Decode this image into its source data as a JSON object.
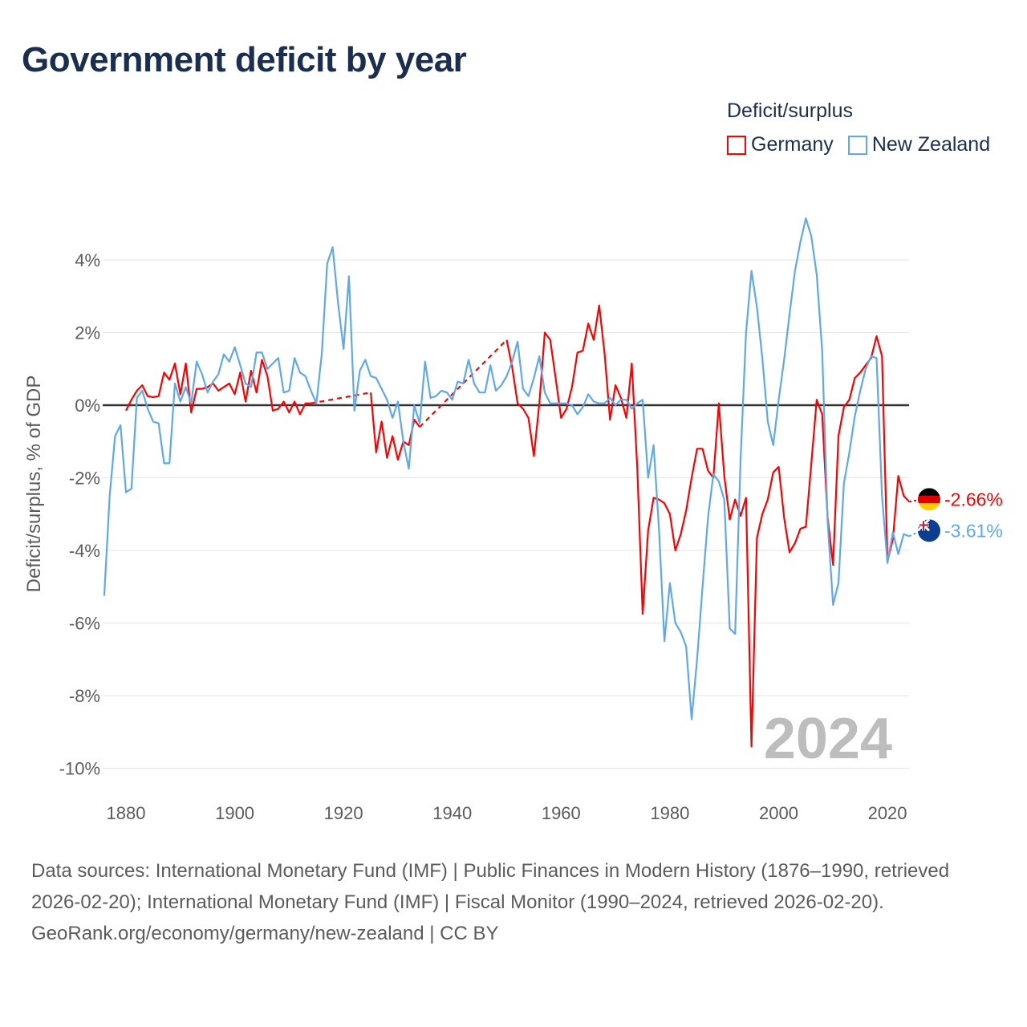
{
  "title": "Government deficit by year",
  "legend": {
    "title": "Deficit/surplus",
    "items": [
      {
        "label": "Germany",
        "color": "#ff0000"
      },
      {
        "label": "New Zealand",
        "color": "#5ea8ec"
      }
    ]
  },
  "footer": {
    "sources": "Data sources: International Monetary Fund (IMF) | Public Finances in Modern History (1876–1990, retrieved 2026-02-20); International Monetary Fund (IMF) | Fiscal Monitor (1990–2024, retrieved 2026-02-20).",
    "credit": "GeoRank.org/economy/germany/new-zealand | CC BY"
  },
  "chart_data": {
    "type": "line",
    "title": "Government deficit by year",
    "xlabel": "",
    "ylabel": "Deficit/surplus, % of GDP",
    "xlim": [
      1876,
      2024
    ],
    "ylim": [
      -10.6,
      5.5
    ],
    "xticks": [
      1880,
      1900,
      1920,
      1940,
      1960,
      1980,
      2000,
      2020
    ],
    "xtick_labels": [
      "1880",
      "1900",
      "1920",
      "1940",
      "1960",
      "1980",
      "2000",
      "2020"
    ],
    "yticks": [
      -10,
      -8,
      -6,
      -4,
      -2,
      0,
      2,
      4
    ],
    "ytick_labels": [
      "-10%",
      "-8%",
      "-6%",
      "-4%",
      "-2%",
      "0%",
      "2%",
      "4%"
    ],
    "grid": true,
    "year_watermark": "2024",
    "legend_position": "top-right",
    "series": [
      {
        "name": "Germany",
        "color": "#ff0000",
        "start_year": 1880,
        "end_label": "-2.66%",
        "flag": "germany-flag",
        "values": [
          -0.15,
          0.15,
          0.4,
          0.55,
          0.25,
          0.22,
          0.25,
          0.9,
          0.7,
          1.15,
          0.3,
          1.15,
          -0.2,
          0.45,
          0.45,
          0.5,
          0.6,
          0.4,
          0.5,
          0.6,
          0.3,
          0.9,
          0.1,
          0.95,
          0.35,
          1.25,
          0.8,
          -0.15,
          -0.1,
          0.1,
          -0.2,
          0.1,
          -0.25,
          0.05,
          0.05,
          null,
          null,
          null,
          null,
          null,
          null,
          null,
          null,
          null,
          null,
          0.35,
          -1.3,
          -0.45,
          -1.45,
          -0.85,
          -1.5,
          -1.0,
          -1.1,
          -0.4,
          -0.6,
          null,
          null,
          null,
          null,
          null,
          null,
          null,
          null,
          null,
          null,
          null,
          null,
          null,
          null,
          null,
          1.8,
          1.05,
          0.05,
          -0.1,
          -0.35,
          -1.4,
          0.05,
          2.0,
          1.8,
          0.75,
          -0.35,
          -0.1,
          0.5,
          1.45,
          1.5,
          2.25,
          1.8,
          2.75,
          1.4,
          -0.4,
          0.55,
          0.2,
          -0.35,
          1.15,
          -1.7,
          -5.75,
          -3.45,
          -2.55,
          -2.6,
          -2.7,
          -3.0,
          -4.0,
          -3.55,
          -2.9,
          -2.0,
          -1.2,
          -1.2,
          -1.8,
          -2.0,
          0.05,
          -1.95,
          -3.15,
          -2.6,
          -3.05,
          -2.55,
          -9.4,
          -3.65,
          -3.0,
          -2.6,
          -1.85,
          -1.7,
          -3.1,
          -4.05,
          -3.8,
          -3.4,
          -3.35,
          -1.6,
          0.15,
          -0.25,
          -3.1,
          -4.4,
          -0.85,
          -0.05,
          0.15,
          0.75,
          0.9,
          1.1,
          1.3,
          1.9,
          1.35,
          -4.3,
          -3.7,
          -1.95,
          -2.5,
          -2.66
        ]
      },
      {
        "name": "New Zealand",
        "color": "#5ea8ec",
        "start_year": 1876,
        "end_label": "-3.61%",
        "flag": "new-zealand-flag",
        "values": [
          -5.25,
          -2.5,
          -0.85,
          -0.55,
          -2.4,
          -2.3,
          0.2,
          0.4,
          -0.1,
          -0.45,
          -0.5,
          -1.6,
          -1.6,
          0.6,
          0.1,
          0.5,
          0.05,
          1.2,
          0.85,
          0.35,
          0.65,
          0.85,
          1.4,
          1.2,
          1.6,
          1.1,
          0.6,
          0.5,
          1.45,
          1.45,
          1.0,
          1.15,
          1.3,
          0.35,
          0.4,
          1.3,
          0.9,
          0.8,
          0.4,
          0.05,
          1.4,
          3.9,
          4.35,
          2.8,
          1.55,
          3.55,
          -0.15,
          0.95,
          1.25,
          0.8,
          0.75,
          0.45,
          0.15,
          -0.35,
          0.1,
          -1.0,
          -1.75,
          0.0,
          -0.5,
          1.2,
          0.2,
          0.25,
          0.4,
          0.35,
          0.15,
          0.65,
          0.6,
          1.25,
          0.6,
          0.35,
          0.35,
          1.1,
          0.4,
          0.55,
          0.8,
          1.2,
          1.75,
          0.45,
          0.25,
          0.75,
          1.35,
          0.35,
          0.05,
          0.05,
          0.05,
          0.05,
          0.0,
          -0.25,
          -0.05,
          0.3,
          0.1,
          0.05,
          0.05,
          0.2,
          0.0,
          0.15,
          0.15,
          -0.1,
          0.05,
          0.15,
          -2.0,
          -1.1,
          -3.4,
          -6.5,
          -4.9,
          -6.0,
          -6.25,
          -6.65,
          -8.65,
          -7.0,
          -5.0,
          -3.1,
          -1.9,
          -2.1,
          -2.6,
          -6.15,
          -6.3,
          -1.5,
          2.0,
          3.7,
          2.7,
          1.3,
          -0.45,
          -1.1,
          0.15,
          1.25,
          2.5,
          3.7,
          4.5,
          5.15,
          4.65,
          3.6,
          1.5,
          -3.2,
          -5.5,
          -4.9,
          -2.15,
          -1.3,
          -0.3,
          0.4,
          1.0,
          1.35,
          1.3,
          -2.5,
          -4.35,
          -3.5,
          -4.1,
          -3.55,
          -3.61
        ]
      }
    ]
  }
}
